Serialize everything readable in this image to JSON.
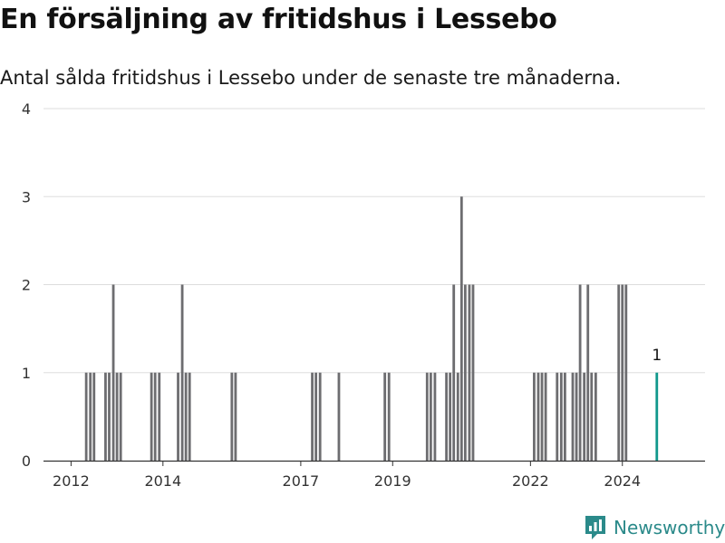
{
  "title": "En försäljning av fritidshus i Lessebo",
  "subtitle": "Antal sålda fritidshus i Lessebo under de senaste tre månaderna.",
  "brand": {
    "name": "Newsworthy"
  },
  "colors": {
    "bar": "#6d6d70",
    "highlight": "#11988c",
    "grid": "#dddddd",
    "axis": "#333333",
    "brand": "#2b8a8a"
  },
  "chart_data": {
    "type": "bar",
    "title": "",
    "xlabel": "",
    "ylabel": "",
    "ylim": [
      0,
      4
    ],
    "yticks": [
      0,
      1,
      2,
      3,
      4
    ],
    "xlim": [
      2011.4,
      2025.8
    ],
    "xticks": [
      2012,
      2014,
      2017,
      2019,
      2022,
      2024
    ],
    "grid": true,
    "series": [
      {
        "x": [
          2012.33,
          2012.42,
          2012.5,
          2012.75,
          2012.83,
          2012.92,
          2013.0,
          2013.08,
          2013.75,
          2013.83,
          2013.92,
          2014.33,
          2014.42,
          2014.5,
          2014.58,
          2015.5,
          2015.58,
          2017.25,
          2017.33,
          2017.42,
          2017.83,
          2018.83,
          2018.92,
          2019.75,
          2019.83,
          2019.92,
          2020.17,
          2020.25,
          2020.33,
          2020.42,
          2020.5,
          2020.58,
          2020.67,
          2020.75,
          2022.08,
          2022.17,
          2022.25,
          2022.33,
          2022.58,
          2022.67,
          2022.75,
          2022.92,
          2023.0,
          2023.08,
          2023.17,
          2023.25,
          2023.33,
          2023.42,
          2023.92,
          2024.0,
          2024.08,
          2024.75
        ],
        "values": [
          1,
          1,
          1,
          1,
          1,
          2,
          1,
          1,
          1,
          1,
          1,
          1,
          2,
          1,
          1,
          1,
          1,
          1,
          1,
          1,
          1,
          1,
          1,
          1,
          1,
          1,
          1,
          1,
          2,
          1,
          3,
          2,
          2,
          2,
          1,
          1,
          1,
          1,
          1,
          1,
          1,
          1,
          1,
          2,
          1,
          2,
          1,
          1,
          2,
          2,
          2,
          1
        ]
      }
    ],
    "highlight": {
      "x": 2024.75,
      "value": 1,
      "label": "1"
    }
  }
}
